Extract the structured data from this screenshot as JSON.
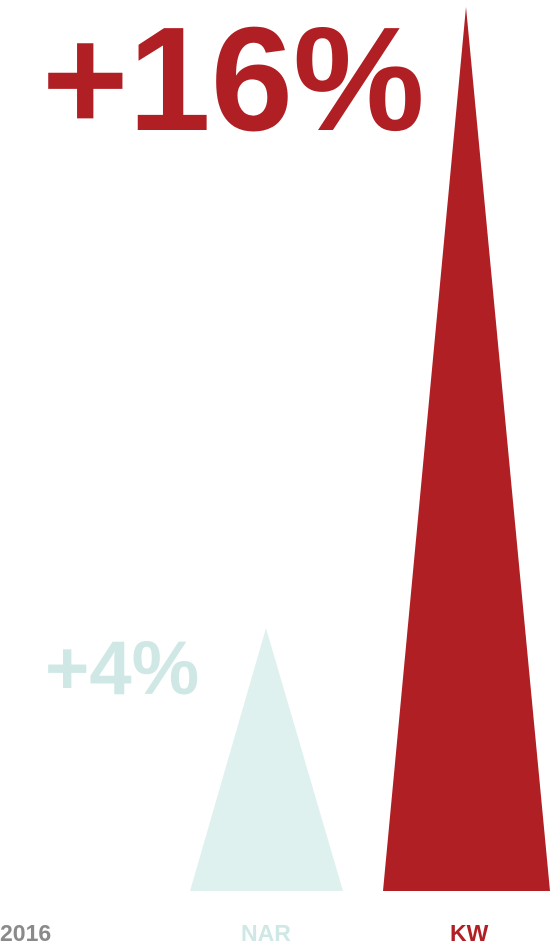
{
  "chart_data": {
    "type": "bar",
    "period_label": "2016",
    "categories": [
      "NAR",
      "KW"
    ],
    "values": [
      4,
      16
    ],
    "value_labels": [
      "+4%",
      "+16%"
    ],
    "colors": [
      "#dff1ef",
      "#b01f24"
    ],
    "ylim": [
      0,
      16
    ],
    "grid": false,
    "legend": "none"
  },
  "colors": {
    "nar": "#dff1ef",
    "nar_label": "#cfe8e5",
    "kw": "#b01f24",
    "muted_text": "#8a8a8a"
  }
}
